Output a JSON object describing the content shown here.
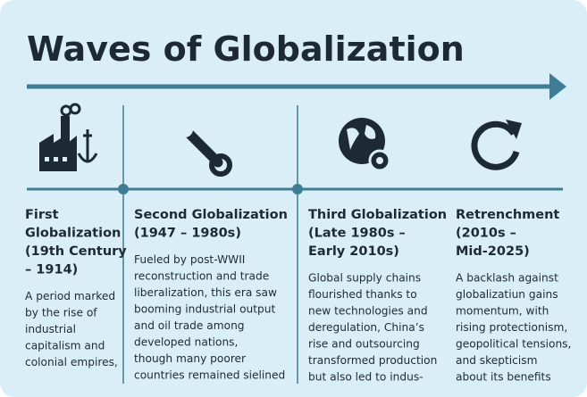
{
  "title": "Waves of Globalization",
  "columns": [
    {
      "heading": [
        "First",
        "Globalization",
        "(19th Century",
        "– 1914)"
      ],
      "body": [
        "A period marked",
        "by the rise of",
        "industrial",
        "capitalism and",
        "colonial empires,"
      ]
    },
    {
      "heading": [
        "Second Globalization",
        "(1947 – 1980s)"
      ],
      "body": [
        "Fueled by post-WWII",
        "reconstruction and trade",
        "liberalization, this era saw",
        "booming industrial output",
        "and oil trade among",
        "developed nations,",
        "though many poorer",
        "countries remained sielined"
      ]
    },
    {
      "heading": [
        "Third Globalization",
        "(Late 1980s –",
        "Early 2010s)"
      ],
      "body": [
        "Global supply chains",
        "flourished thanks to",
        "new technologies and",
        "deregulation, China’s",
        "rise and outsourcing",
        "transformed production",
        "but also led to indus-"
      ]
    },
    {
      "heading": [
        "Retrenchment",
        "(2010s –",
        "Mid-2025)"
      ],
      "body": [
        "A backlash against",
        "globalizatiun gains",
        "momentum, with",
        "rising protectionism,",
        "geopolitical tensions,",
        "and skepticism",
        "about its benefits"
      ]
    }
  ]
}
